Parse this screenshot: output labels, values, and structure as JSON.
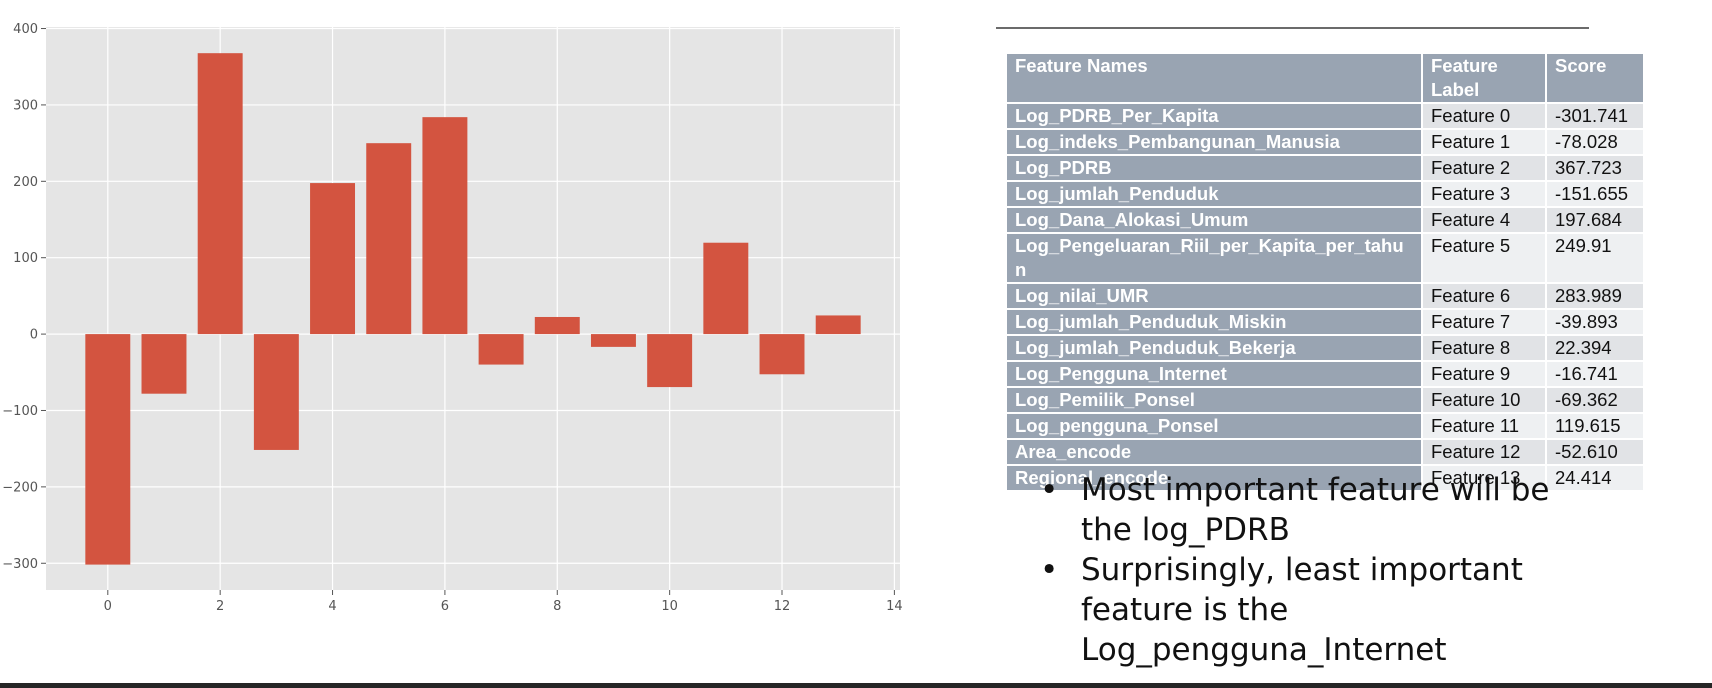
{
  "chart_data": {
    "type": "bar",
    "x": [
      0,
      1,
      2,
      3,
      4,
      5,
      6,
      7,
      8,
      9,
      10,
      11,
      12,
      13
    ],
    "values": [
      -301.741,
      -78.028,
      367.723,
      -151.655,
      197.684,
      249.91,
      283.989,
      -39.893,
      22.394,
      -16.741,
      -69.362,
      119.615,
      -52.61,
      24.414
    ],
    "xlim": [
      -1.1,
      14.1
    ],
    "ylim": [
      -335,
      402
    ],
    "xticks": [
      0,
      2,
      4,
      6,
      8,
      10,
      12,
      14
    ],
    "yticks": [
      -300,
      -200,
      -100,
      0,
      100,
      200,
      300,
      400
    ],
    "xtick_labels": [
      "0",
      "2",
      "4",
      "6",
      "8",
      "10",
      "12",
      "14"
    ],
    "ytick_labels": [
      "−300",
      "−200",
      "−100",
      "0",
      "100",
      "200",
      "300",
      "400"
    ],
    "grid": true,
    "bar_color": "#d35440",
    "background_color": "#e5e5e5"
  },
  "table": {
    "headers": [
      "Feature Names",
      "Feature Label",
      "Score"
    ],
    "rows": [
      {
        "name": "Log_PDRB_Per_Kapita",
        "label": "Feature 0",
        "score": "-301.741"
      },
      {
        "name": "Log_indeks_Pembangunan_Manusia",
        "label": "Feature 1",
        "score": "-78.028"
      },
      {
        "name": "Log_PDRB",
        "label": "Feature 2",
        "score": "367.723"
      },
      {
        "name": "Log_jumlah_Penduduk",
        "label": "Feature 3",
        "score": "-151.655"
      },
      {
        "name": "Log_Dana_Alokasi_Umum",
        "label": "Feature 4",
        "score": "197.684"
      },
      {
        "name": "Log_Pengeluaran_Riil_per_Kapita_per_tahun",
        "label": "Feature 5",
        "score": "249.91"
      },
      {
        "name": "Log_nilai_UMR",
        "label": "Feature 6",
        "score": "283.989"
      },
      {
        "name": "Log_jumlah_Penduduk_Miskin",
        "label": "Feature 7",
        "score": "-39.893"
      },
      {
        "name": "Log_jumlah_Penduduk_Bekerja",
        "label": "Feature 8",
        "score": "22.394"
      },
      {
        "name": "Log_Pengguna_Internet",
        "label": "Feature 9",
        "score": "-16.741"
      },
      {
        "name": "Log_Pemilik_Ponsel",
        "label": "Feature 10",
        "score": "-69.362"
      },
      {
        "name": "Log_pengguna_Ponsel",
        "label": "Feature 11",
        "score": "119.615"
      },
      {
        "name": "Area_encode",
        "label": "Feature 12",
        "score": "-52.610"
      },
      {
        "name": "Regional_encode",
        "label": "Feature 13",
        "score": "24.414"
      }
    ]
  },
  "notes": [
    "Most important feature will be the log_PDRB",
    "Surprisingly, least important feature is the Log_pengguna_Internet"
  ],
  "bullet_char": "•"
}
